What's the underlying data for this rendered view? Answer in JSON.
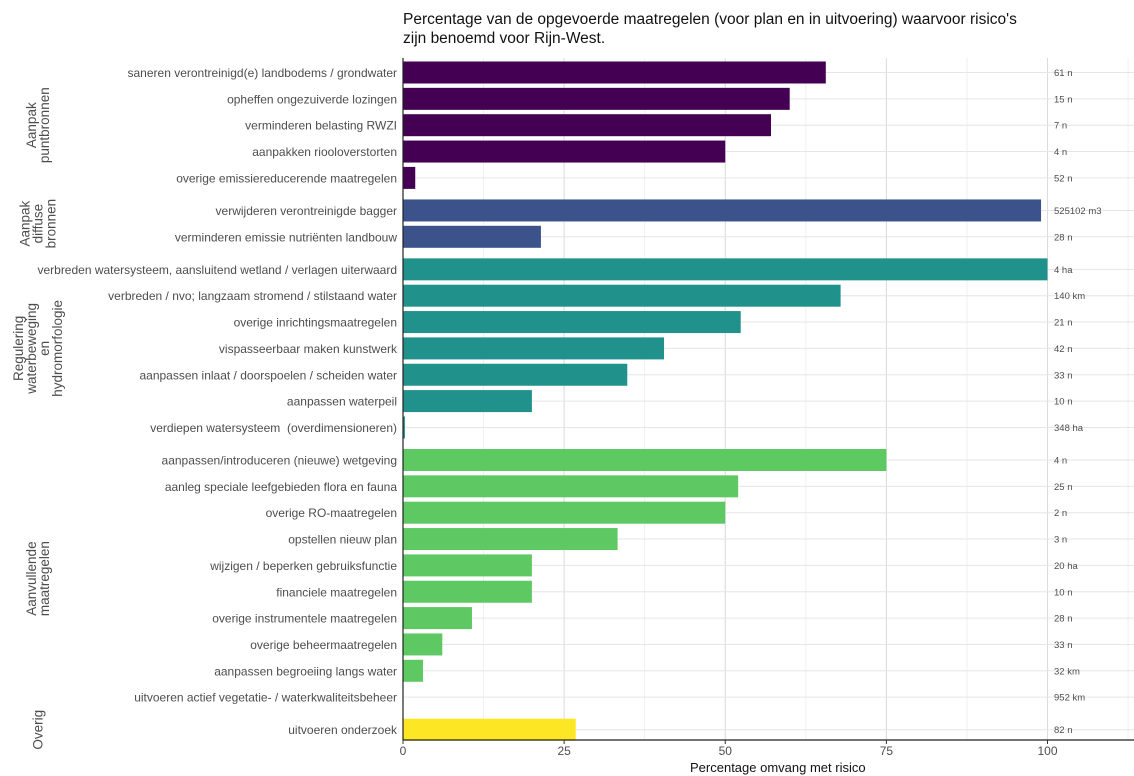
{
  "chart_data": {
    "type": "bar",
    "orientation": "horizontal",
    "title": "Percentage van de opgevoerde maatregelen (voor plan en in uitvoering) waarvoor risico's zijn benoemd voor Rijn-West.",
    "title_lines": [
      "Percentage van de opgevoerde maatregelen (voor plan en in uitvoering) waarvoor risico's",
      "zijn benoemd voor Rijn-West."
    ],
    "xlabel": "Percentage omvang met risico",
    "xlim": [
      0,
      113
    ],
    "xticks": [
      0,
      25,
      50,
      75,
      100
    ],
    "grid": true,
    "groups": [
      {
        "label_lines": [
          "Aanpak",
          "puntbronnen"
        ],
        "color": "#440154",
        "items": [
          {
            "label": "saneren verontreinigd(e) landbodems / grondwater",
            "value": 65.6,
            "annotation": "61 n"
          },
          {
            "label": "opheffen ongezuiverde lozingen",
            "value": 60.0,
            "annotation": "15 n"
          },
          {
            "label": "verminderen belasting RWZI",
            "value": 57.1,
            "annotation": "7 n"
          },
          {
            "label": "aanpakken riooloverstorten",
            "value": 50.0,
            "annotation": "4 n"
          },
          {
            "label": "overige emissiereducerende maatregelen",
            "value": 1.9,
            "annotation": "52 n"
          }
        ]
      },
      {
        "label_lines": [
          "Aanpak",
          "diffuse",
          "bronnen"
        ],
        "color": "#3b528b",
        "items": [
          {
            "label": "verwijderen verontreinigde bagger",
            "value": 99.0,
            "annotation": "525102 m3"
          },
          {
            "label": "verminderen emissie nutriënten landbouw",
            "value": 21.4,
            "annotation": "28 n"
          }
        ]
      },
      {
        "label_lines": [
          "Regulering",
          "waterbeweging",
          "en",
          "hydromorfologie"
        ],
        "color": "#21918c",
        "items": [
          {
            "label": "verbreden watersysteem, aansluitend wetland / verlagen uiterwaard",
            "value": 100.0,
            "annotation": "4 ha"
          },
          {
            "label": "verbreden / nvo; langzaam stromend / stilstaand water",
            "value": 67.9,
            "annotation": "140 km"
          },
          {
            "label": "overige inrichtingsmaatregelen",
            "value": 52.4,
            "annotation": "21 n"
          },
          {
            "label": "vispasseerbaar maken kunstwerk",
            "value": 40.5,
            "annotation": "42 n"
          },
          {
            "label": "aanpassen inlaat / doorspoelen / scheiden water",
            "value": 34.8,
            "annotation": "33 n"
          },
          {
            "label": "aanpassen waterpeil",
            "value": 20.0,
            "annotation": "10 n"
          },
          {
            "label": "verdiepen watersysteem  (overdimensioneren)",
            "value": 0.3,
            "annotation": "348 ha"
          }
        ]
      },
      {
        "label_lines": [
          "Aanvullende",
          "maatregelen"
        ],
        "color": "#5ec962",
        "items": [
          {
            "label": "aanpassen/introduceren (nieuwe) wetgeving",
            "value": 75.0,
            "annotation": "4 n"
          },
          {
            "label": "aanleg speciale leefgebieden flora en fauna",
            "value": 52.0,
            "annotation": "25 n"
          },
          {
            "label": "overige RO-maatregelen",
            "value": 50.0,
            "annotation": "2 n"
          },
          {
            "label": "opstellen nieuw plan",
            "value": 33.3,
            "annotation": "3 n"
          },
          {
            "label": "wijzigen / beperken gebruiksfunctie",
            "value": 20.0,
            "annotation": "20 ha"
          },
          {
            "label": "financiele maatregelen",
            "value": 20.0,
            "annotation": "10 n"
          },
          {
            "label": "overige instrumentele maatregelen",
            "value": 10.7,
            "annotation": "28 n"
          },
          {
            "label": "overige beheermaatregelen",
            "value": 6.1,
            "annotation": "33 n"
          },
          {
            "label": "aanpassen begroeiing langs water",
            "value": 3.1,
            "annotation": "32 km"
          },
          {
            "label": "uitvoeren actief vegetatie- / waterkwaliteitsbeheer",
            "value": 0,
            "annotation": "952 km"
          }
        ]
      },
      {
        "label_lines": [
          "Overig"
        ],
        "color": "#fde725",
        "items": [
          {
            "label": "uitvoeren onderzoek",
            "value": 26.8,
            "annotation": "82 n"
          }
        ]
      }
    ]
  }
}
